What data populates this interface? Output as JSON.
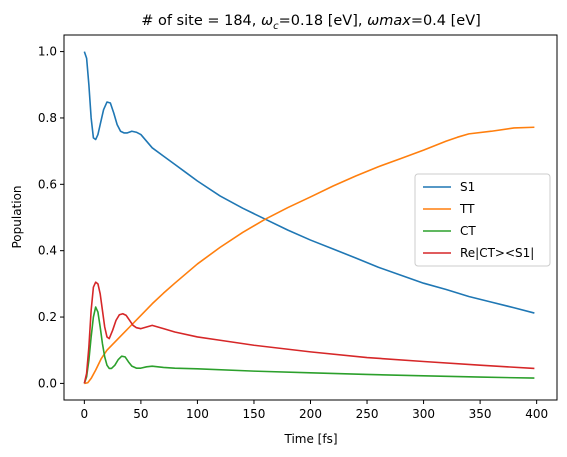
{
  "chart_data": {
    "type": "line",
    "title": "# of site = 184, ω_c=0.18 [eV], ωmax=0.4 [eV]",
    "title_parts": {
      "prefix": "# of site = 184, ",
      "omega": "ω",
      "sub_c": "c",
      "mid": "=0.18 [eV], ",
      "omega_max": "ωmax",
      "suffix": "=0.4 [eV]"
    },
    "xlabel": "Time [fs]",
    "ylabel": "Population",
    "xlim": [
      -18,
      418
    ],
    "ylim": [
      -0.05,
      1.05
    ],
    "xticks": [
      0,
      50,
      100,
      150,
      200,
      250,
      300,
      350,
      400
    ],
    "xtick_labels": [
      "0",
      "50",
      "100",
      "150",
      "200",
      "250",
      "300",
      "350",
      "400"
    ],
    "yticks": [
      0.0,
      0.2,
      0.4,
      0.6,
      0.8,
      1.0
    ],
    "ytick_labels": [
      "0.0",
      "0.2",
      "0.4",
      "0.6",
      "0.8",
      "1.0"
    ],
    "grid": false,
    "legend_position": "center-right",
    "series": [
      {
        "name": "S1",
        "color": "#1f77b4",
        "x": [
          0,
          2,
          4,
          6,
          8,
          10,
          12,
          14,
          17,
          20,
          23,
          26,
          29,
          32,
          35,
          38,
          42,
          46,
          50,
          55,
          60,
          70,
          80,
          90,
          100,
          120,
          140,
          160,
          180,
          200,
          220,
          240,
          260,
          280,
          300,
          320,
          340,
          360,
          380,
          398
        ],
        "y": [
          1.0,
          0.98,
          0.9,
          0.8,
          0.74,
          0.735,
          0.75,
          0.78,
          0.825,
          0.848,
          0.845,
          0.815,
          0.78,
          0.76,
          0.755,
          0.755,
          0.76,
          0.757,
          0.75,
          0.73,
          0.71,
          0.685,
          0.66,
          0.635,
          0.61,
          0.565,
          0.528,
          0.495,
          0.462,
          0.432,
          0.405,
          0.378,
          0.35,
          0.326,
          0.302,
          0.283,
          0.262,
          0.245,
          0.228,
          0.212
        ]
      },
      {
        "name": "TT",
        "color": "#ff7f0e",
        "x": [
          0,
          3,
          6,
          10,
          15,
          20,
          30,
          40,
          50,
          60,
          70,
          80,
          100,
          120,
          140,
          160,
          180,
          200,
          220,
          240,
          260,
          280,
          300,
          320,
          330,
          340,
          360,
          380,
          398
        ],
        "y": [
          0.0,
          0.002,
          0.015,
          0.04,
          0.075,
          0.1,
          0.135,
          0.17,
          0.205,
          0.24,
          0.272,
          0.302,
          0.36,
          0.41,
          0.455,
          0.495,
          0.53,
          0.562,
          0.595,
          0.625,
          0.653,
          0.678,
          0.703,
          0.73,
          0.742,
          0.752,
          0.76,
          0.77,
          0.772
        ]
      },
      {
        "name": "CT",
        "color": "#2ca02c",
        "x": [
          0,
          2,
          4,
          6,
          8,
          10,
          12,
          14,
          16,
          18,
          20,
          22,
          24,
          27,
          30,
          33,
          36,
          39,
          42,
          46,
          50,
          55,
          60,
          70,
          80,
          100,
          150,
          200,
          250,
          300,
          350,
          398
        ],
        "y": [
          0.0,
          0.02,
          0.07,
          0.14,
          0.2,
          0.23,
          0.215,
          0.17,
          0.12,
          0.08,
          0.055,
          0.045,
          0.045,
          0.055,
          0.072,
          0.082,
          0.08,
          0.065,
          0.052,
          0.046,
          0.046,
          0.05,
          0.052,
          0.048,
          0.046,
          0.044,
          0.037,
          0.032,
          0.027,
          0.023,
          0.019,
          0.016
        ]
      },
      {
        "name": "Re|CT><S1|",
        "color": "#d62728",
        "x": [
          0,
          2,
          4,
          6,
          8,
          10,
          12,
          14,
          16,
          18,
          20,
          22,
          25,
          28,
          31,
          34,
          37,
          40,
          43,
          46,
          50,
          55,
          60,
          65,
          70,
          80,
          100,
          120,
          150,
          200,
          250,
          300,
          350,
          398
        ],
        "y": [
          0.0,
          0.03,
          0.11,
          0.22,
          0.29,
          0.305,
          0.3,
          0.27,
          0.22,
          0.17,
          0.14,
          0.135,
          0.16,
          0.19,
          0.207,
          0.21,
          0.205,
          0.19,
          0.175,
          0.168,
          0.165,
          0.17,
          0.175,
          0.17,
          0.165,
          0.155,
          0.14,
          0.13,
          0.115,
          0.095,
          0.078,
          0.066,
          0.055,
          0.045
        ]
      }
    ]
  }
}
